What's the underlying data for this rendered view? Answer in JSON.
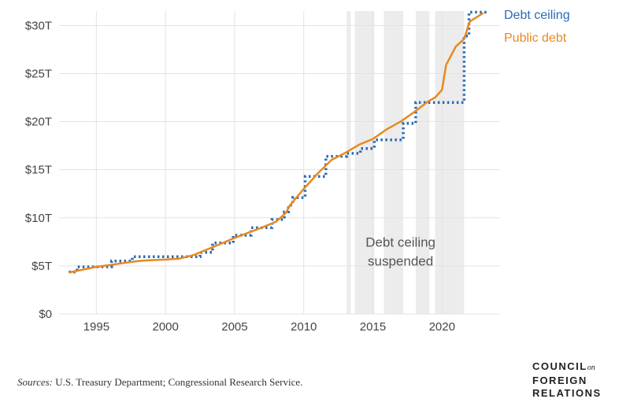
{
  "chart_data": {
    "type": "line",
    "title": "",
    "xlabel": "",
    "ylabel": "",
    "xlim": [
      1992.3,
      2024.2
    ],
    "ylim": [
      0,
      31.5
    ],
    "x_ticks": [
      1995,
      2000,
      2005,
      2010,
      2015,
      2020
    ],
    "x_tick_labels": [
      "1995",
      "2000",
      "2005",
      "2010",
      "2015",
      "2020"
    ],
    "y_ticks": [
      0,
      5,
      10,
      15,
      20,
      25,
      30
    ],
    "y_tick_labels": [
      "$0",
      "$5T",
      "$10T",
      "$15T",
      "$20T",
      "$25T",
      "$30T"
    ],
    "grid": true,
    "legend_position": "top-right",
    "series": [
      {
        "name": "Debt ceiling",
        "style": "step-dotted",
        "color": "#2a6bb5",
        "points": [
          [
            1993.0,
            4.37
          ],
          [
            1993.6,
            4.9
          ],
          [
            1996.1,
            5.5
          ],
          [
            1997.6,
            5.95
          ],
          [
            2002.5,
            6.4
          ],
          [
            2003.4,
            7.38
          ],
          [
            2004.9,
            8.18
          ],
          [
            2006.2,
            8.97
          ],
          [
            2007.7,
            9.82
          ],
          [
            2008.6,
            10.62
          ],
          [
            2008.9,
            11.32
          ],
          [
            2009.2,
            12.1
          ],
          [
            2010.1,
            14.29
          ],
          [
            2011.6,
            16.39
          ],
          [
            2013.1,
            16.7
          ],
          [
            2014.1,
            17.2
          ],
          [
            2015.1,
            18.11
          ],
          [
            2017.2,
            19.81
          ],
          [
            2018.1,
            21.99
          ],
          [
            2021.6,
            28.9
          ],
          [
            2021.95,
            31.38
          ],
          [
            2023.3,
            31.38
          ]
        ]
      },
      {
        "name": "Public debt",
        "style": "solid",
        "color": "#e8891f",
        "points": [
          [
            1993.0,
            4.3
          ],
          [
            1994.0,
            4.6
          ],
          [
            1995.0,
            4.9
          ],
          [
            1996.0,
            5.1
          ],
          [
            1997.0,
            5.3
          ],
          [
            1998.0,
            5.5
          ],
          [
            1999.0,
            5.6
          ],
          [
            2000.0,
            5.65
          ],
          [
            2001.0,
            5.75
          ],
          [
            2002.0,
            6.1
          ],
          [
            2003.0,
            6.7
          ],
          [
            2004.0,
            7.3
          ],
          [
            2005.0,
            7.9
          ],
          [
            2006.0,
            8.45
          ],
          [
            2007.0,
            9.0
          ],
          [
            2008.0,
            9.6
          ],
          [
            2008.7,
            10.5
          ],
          [
            2009.0,
            11.3
          ],
          [
            2010.0,
            13.0
          ],
          [
            2011.0,
            14.6
          ],
          [
            2012.0,
            16.0
          ],
          [
            2013.0,
            16.75
          ],
          [
            2014.0,
            17.6
          ],
          [
            2015.0,
            18.2
          ],
          [
            2016.0,
            19.2
          ],
          [
            2017.0,
            20.0
          ],
          [
            2018.0,
            21.0
          ],
          [
            2019.0,
            22.1
          ],
          [
            2019.5,
            22.5
          ],
          [
            2020.0,
            23.3
          ],
          [
            2020.3,
            25.9
          ],
          [
            2021.0,
            27.8
          ],
          [
            2021.6,
            28.6
          ],
          [
            2022.0,
            30.4
          ],
          [
            2023.0,
            31.3
          ]
        ]
      }
    ],
    "shaded_periods": [
      [
        2013.1,
        2013.4
      ],
      [
        2013.7,
        2015.1
      ],
      [
        2015.8,
        2017.2
      ],
      [
        2018.1,
        2019.1
      ],
      [
        2019.5,
        2021.6
      ]
    ],
    "annotations": [
      {
        "text_lines": [
          "Debt ceiling",
          "suspended"
        ],
        "x": 2017.0,
        "y": 7.0
      }
    ]
  },
  "footer": {
    "source_label": "Sources:",
    "source_text": "U.S. Treasury Department; Congressional Research Service.",
    "logo_line1": "COUNCIL",
    "logo_on": "on",
    "logo_line2": "FOREIGN",
    "logo_line3": "RELATIONS"
  },
  "colors": {
    "debt_ceiling": "#2a6bb5",
    "public_debt": "#e8891f",
    "shading": "#ececec",
    "grid": "#e3e3e3"
  }
}
